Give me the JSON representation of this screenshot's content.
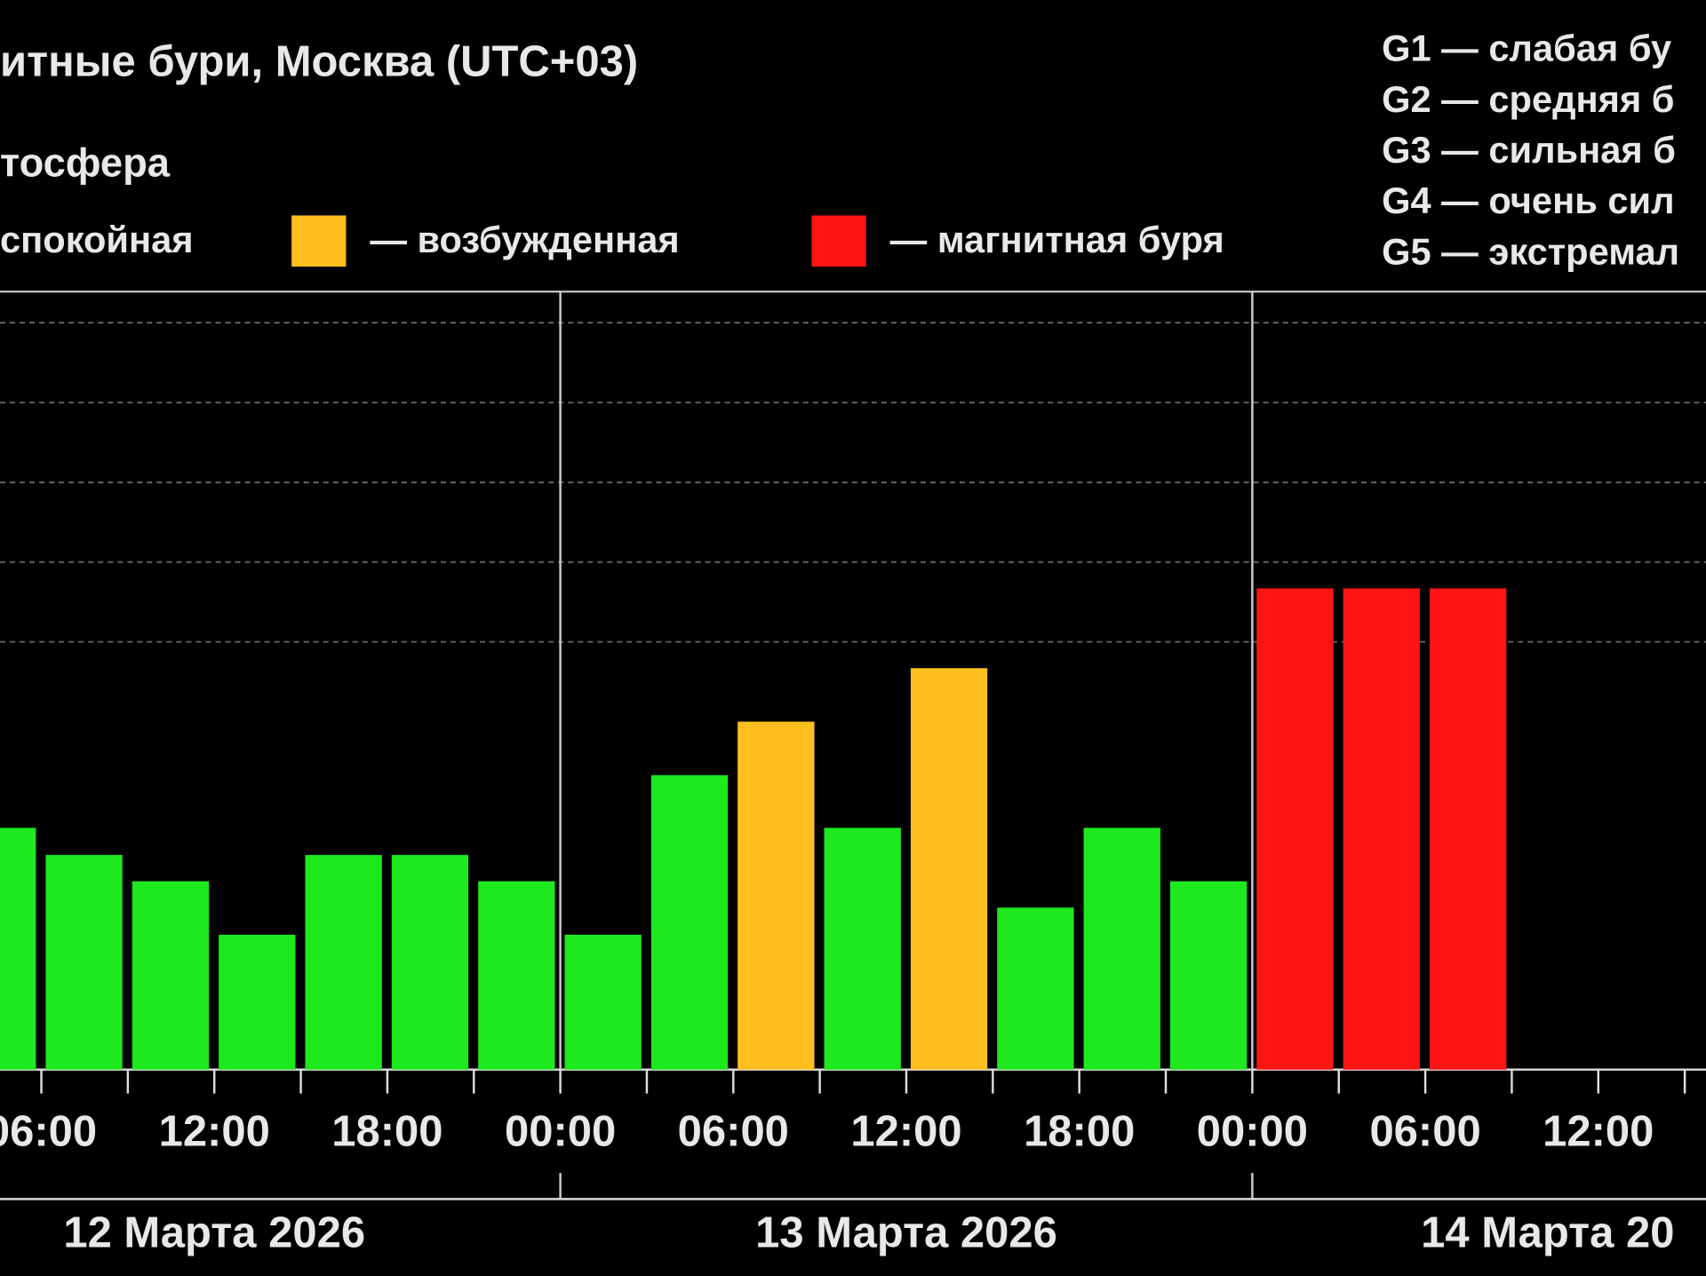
{
  "chart_data": {
    "type": "bar",
    "title": "итные бури, Москва (UTC+03)",
    "subtitle": "тосфера",
    "legend": [
      {
        "label": "спокойная",
        "color": "#1ee81e"
      },
      {
        "label": "— возбужденная",
        "color": "#ffbf1f"
      },
      {
        "label": "— магнитная буря",
        "color": "#ff1414"
      }
    ],
    "g_scale": [
      "G1 — слабая бу",
      "G2 — средняя б",
      "G3 — сильная б",
      "G4 — очень сил",
      "G5 — экстремал"
    ],
    "days": [
      {
        "label": "12 Марта 2026",
        "values": [
          null,
          2.67,
          2.33,
          2.0,
          1.33,
          2.33,
          2.33,
          2.0
        ],
        "colors": [
          null,
          "#1ee81e",
          "#1ee81e",
          "#1ee81e",
          "#1ee81e",
          "#1ee81e",
          "#1ee81e",
          "#1ee81e"
        ]
      },
      {
        "label": "13 Марта 2026",
        "values": [
          1.33,
          3.33,
          4.0,
          2.67,
          4.67,
          1.67,
          2.67,
          2.0
        ],
        "colors": [
          "#1ee81e",
          "#1ee81e",
          "#ffbf1f",
          "#1ee81e",
          "#ffbf1f",
          "#1ee81e",
          "#1ee81e",
          "#1ee81e"
        ]
      },
      {
        "label": "14 Марта 20",
        "values": [
          5.67,
          5.67,
          5.67
        ],
        "colors": [
          "#ff1414",
          "#ff1414",
          "#ff1414"
        ]
      }
    ],
    "time_labels": [
      "06:00",
      "12:00",
      "18:00",
      "00:00",
      "06:00",
      "12:00",
      "18:00",
      "00:00",
      "06:00",
      "12:00"
    ],
    "ylim": [
      -0.36,
      9.39
    ],
    "ygrid": [
      5,
      6,
      7,
      8,
      9
    ]
  }
}
